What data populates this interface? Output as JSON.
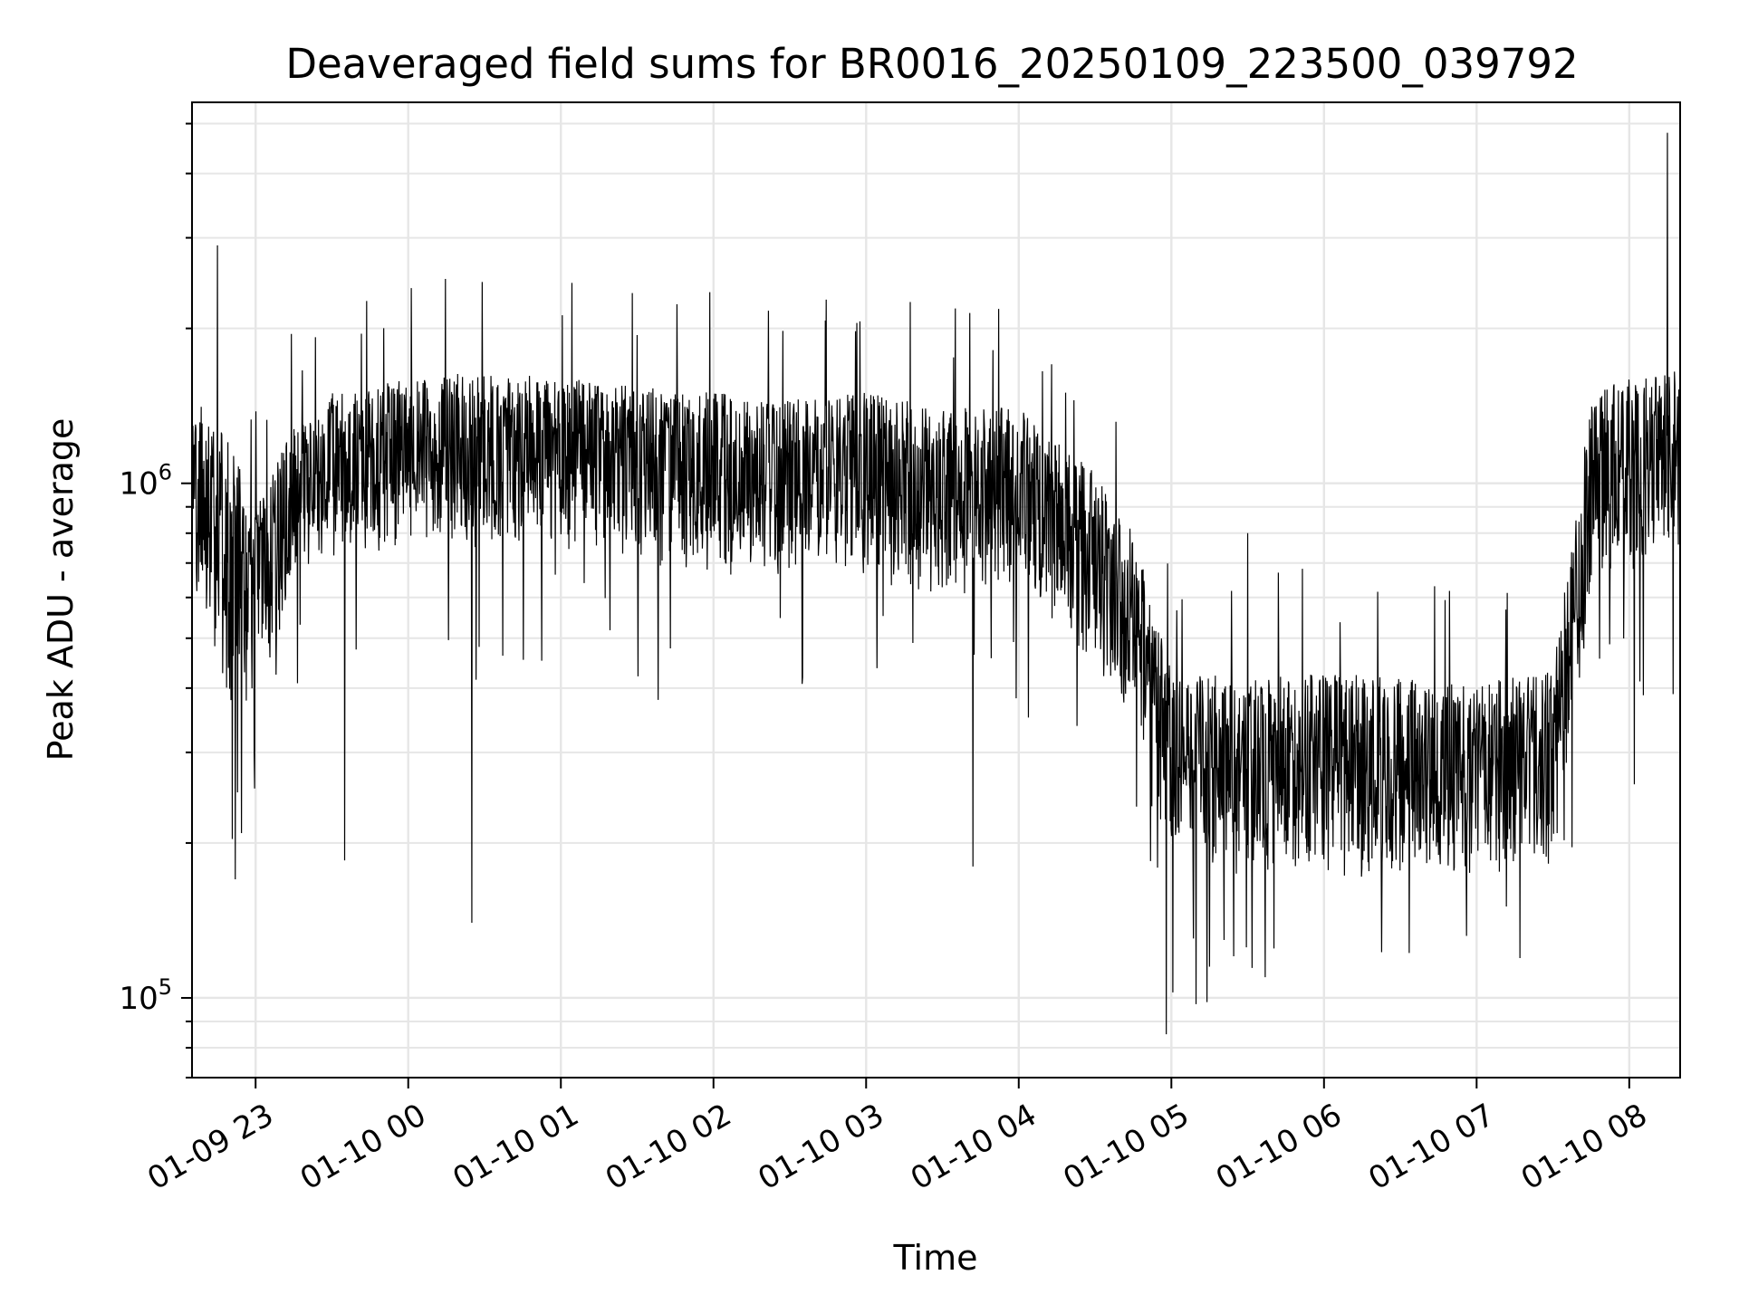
{
  "chart_data": {
    "type": "line",
    "title": "Deaveraged field sums for BR0016_20250109_223500_039792",
    "xlabel": "Time",
    "ylabel": "Peak ADU - average",
    "yscale": "log",
    "ylim": [
      70000,
      5500000
    ],
    "xlim": [
      "2025-01-09 22:35",
      "2025-01-10 08:20"
    ],
    "grid": true,
    "line_color": "#000000",
    "grid_color": "#e6e6e6",
    "x_ticks": [
      {
        "value": "2025-01-09 23:00",
        "label": "01-09 23"
      },
      {
        "value": "2025-01-10 00:00",
        "label": "01-10 00"
      },
      {
        "value": "2025-01-10 01:00",
        "label": "01-10 01"
      },
      {
        "value": "2025-01-10 02:00",
        "label": "01-10 02"
      },
      {
        "value": "2025-01-10 03:00",
        "label": "01-10 03"
      },
      {
        "value": "2025-01-10 04:00",
        "label": "01-10 04"
      },
      {
        "value": "2025-01-10 05:00",
        "label": "01-10 05"
      },
      {
        "value": "2025-01-10 06:00",
        "label": "01-10 06"
      },
      {
        "value": "2025-01-10 07:00",
        "label": "01-10 07"
      },
      {
        "value": "2025-01-10 08:00",
        "label": "01-10 08"
      }
    ],
    "y_ticks": [
      {
        "value": 100000,
        "base": "10",
        "exp": "5"
      },
      {
        "value": 1000000,
        "base": "10",
        "exp": "6"
      }
    ],
    "series_envelope": {
      "x": [
        "2025-01-09 22:35",
        "2025-01-09 22:50",
        "2025-01-09 23:00",
        "2025-01-09 23:15",
        "2025-01-09 23:30",
        "2025-01-10 00:00",
        "2025-01-10 00:30",
        "2025-01-10 01:00",
        "2025-01-10 01:30",
        "2025-01-10 02:00",
        "2025-01-10 02:30",
        "2025-01-10 03:00",
        "2025-01-10 03:30",
        "2025-01-10 04:00",
        "2025-01-10 04:30",
        "2025-01-10 04:45",
        "2025-01-10 05:00",
        "2025-01-10 05:30",
        "2025-01-10 06:00",
        "2025-01-10 06:30",
        "2025-01-10 07:00",
        "2025-01-10 07:30",
        "2025-01-10 07:45",
        "2025-01-10 08:00",
        "2025-01-10 08:20"
      ],
      "median": [
        950000,
        700000,
        680000,
        880000,
        1000000,
        1100000,
        1100000,
        1150000,
        1100000,
        1050000,
        1000000,
        1050000,
        950000,
        950000,
        700000,
        550000,
        300000,
        280000,
        300000,
        280000,
        280000,
        290000,
        950000,
        1050000,
        1100000
      ],
      "low": [
        550000,
        350000,
        350000,
        650000,
        700000,
        750000,
        750000,
        750000,
        700000,
        650000,
        650000,
        650000,
        600000,
        600000,
        450000,
        300000,
        180000,
        170000,
        170000,
        170000,
        170000,
        180000,
        600000,
        650000,
        700000
      ],
      "high": [
        1500000,
        1200000,
        900000,
        1300000,
        1500000,
        1600000,
        1650000,
        1600000,
        1550000,
        1500000,
        1450000,
        1500000,
        1400000,
        1400000,
        1050000,
        800000,
        430000,
        420000,
        430000,
        420000,
        410000,
        430000,
        1500000,
        1600000,
        1700000
      ]
    },
    "notable_points": [
      {
        "x": "2025-01-09 22:45",
        "y": 2900000
      },
      {
        "x": "2025-01-09 22:52",
        "y": 170000
      },
      {
        "x": "2025-01-09 23:35",
        "y": 185000
      },
      {
        "x": "2025-01-10 00:25",
        "y": 140000
      },
      {
        "x": "2025-01-10 03:42",
        "y": 180000
      },
      {
        "x": "2025-01-10 04:58",
        "y": 85000
      },
      {
        "x": "2025-01-10 05:15",
        "y": 115000
      },
      {
        "x": "2025-01-10 05:30",
        "y": 800000
      },
      {
        "x": "2025-01-10 08:02",
        "y": 260000
      },
      {
        "x": "2025-01-10 08:15",
        "y": 4800000
      }
    ]
  }
}
